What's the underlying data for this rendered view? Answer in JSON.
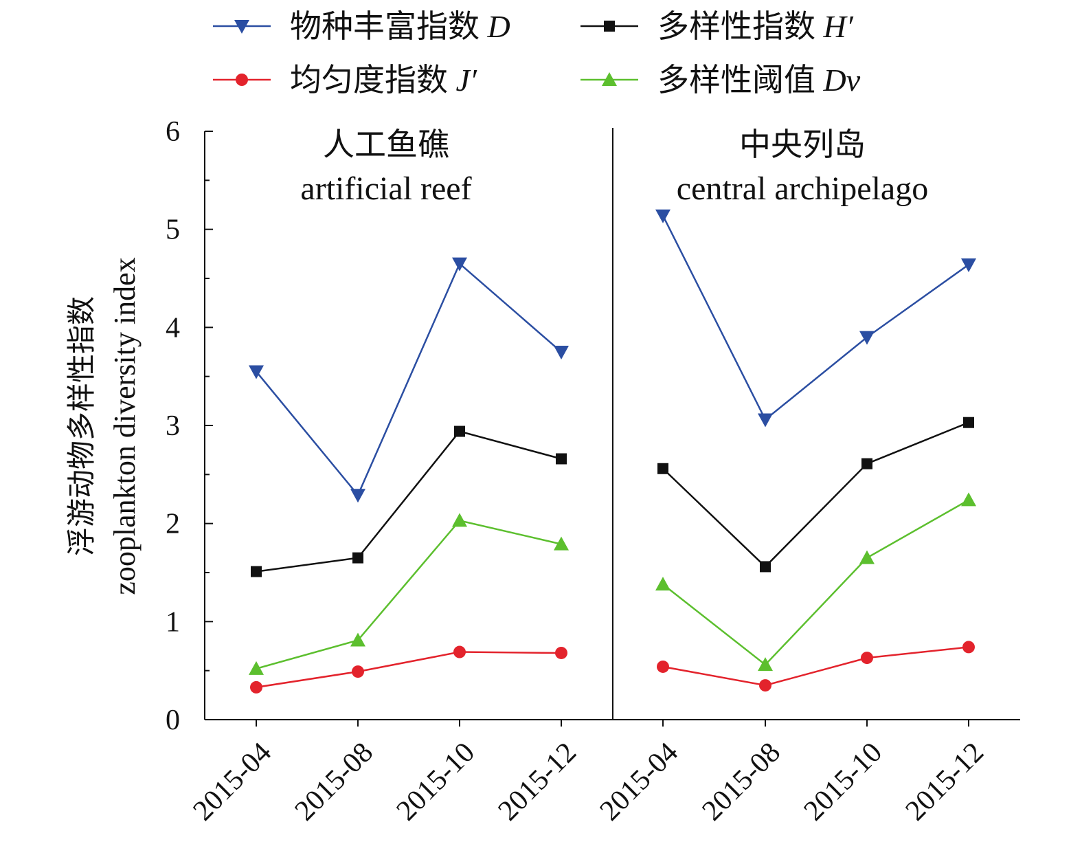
{
  "chart_data": {
    "type": "line",
    "ylabel": [
      "浮游动物多样性指数",
      "zooplankton diversity index"
    ],
    "ylim": [
      0,
      6
    ],
    "yticks": [
      "0",
      "1",
      "2",
      "3",
      "4",
      "5",
      "6"
    ],
    "grid": false,
    "legend_placement": "top",
    "panels": [
      {
        "title_cn": "人工鱼礁",
        "title_en": "artificial reef",
        "categories": [
          "2015-04",
          "2015-08",
          "2015-10",
          "2015-12"
        ]
      },
      {
        "title_cn": "中央列岛",
        "title_en": "central archipelago",
        "categories": [
          "2015-04",
          "2015-08",
          "2015-10",
          "2015-12"
        ]
      }
    ],
    "series": [
      {
        "name": "物种丰富指数",
        "symbol": "D",
        "color": "#2b4ea2",
        "marker": "triangle-down",
        "values": [
          [
            3.55,
            2.29,
            4.65,
            3.75
          ],
          [
            5.14,
            3.06,
            3.9,
            4.64
          ]
        ]
      },
      {
        "name": "多样性指数",
        "symbol": "H′",
        "color": "#111111",
        "marker": "square",
        "values": [
          [
            1.51,
            1.65,
            2.94,
            2.66
          ],
          [
            2.56,
            1.56,
            2.61,
            3.03
          ]
        ]
      },
      {
        "name": "均匀度指数",
        "symbol": "J′",
        "color": "#e3232c",
        "marker": "circle",
        "values": [
          [
            0.33,
            0.49,
            0.69,
            0.68
          ],
          [
            0.54,
            0.35,
            0.63,
            0.74
          ]
        ]
      },
      {
        "name": "多样性阈值",
        "symbol": "Dv",
        "color": "#5cbf2e",
        "marker": "triangle-up",
        "values": [
          [
            0.52,
            0.81,
            2.03,
            1.79
          ],
          [
            1.38,
            0.56,
            1.65,
            2.24
          ]
        ]
      }
    ]
  }
}
